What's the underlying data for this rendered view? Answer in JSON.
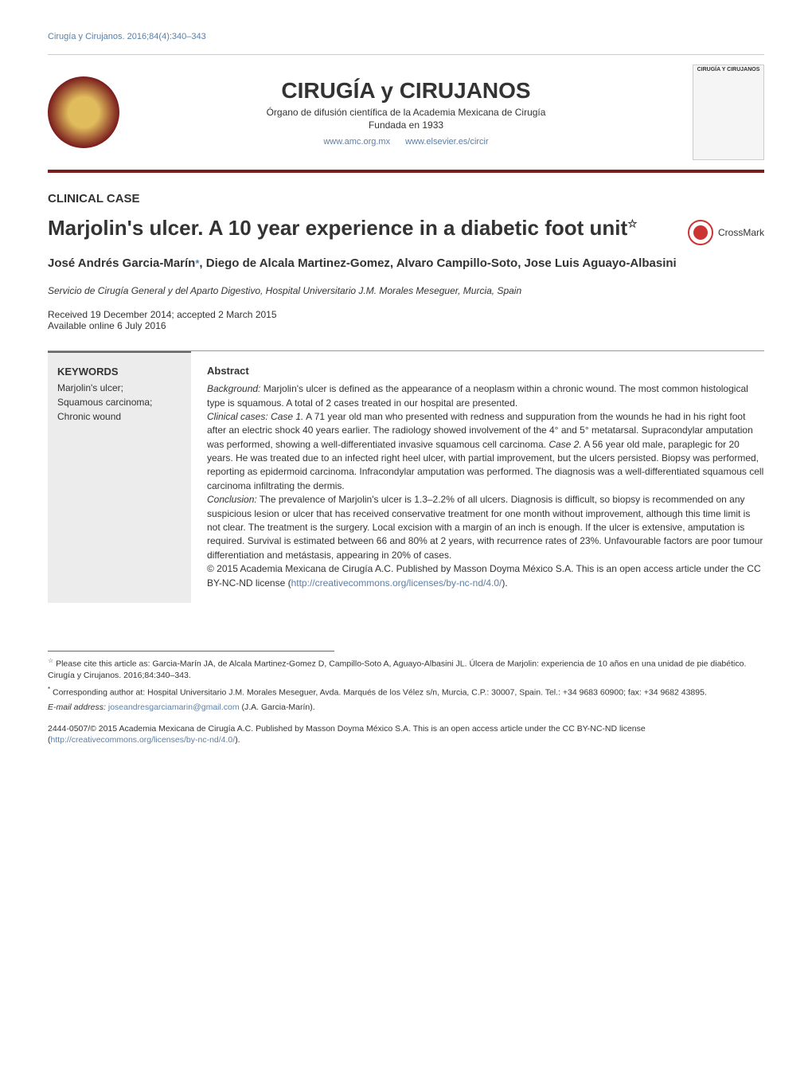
{
  "header": {
    "citation_link": "Cirugía y Cirujanos. 2016;84(4):340–343",
    "journal_title": "CIRUGÍA y CIRUJANOS",
    "journal_subtitle": "Órgano de difusión científica de la Academia Mexicana de Cirugía",
    "journal_founded": "Fundada en 1933",
    "link1": "www.amc.org.mx",
    "link2": "www.elsevier.es/circir",
    "cover_label": "CIRUGÍA Y CIRUJANOS"
  },
  "article": {
    "section_label": "CLINICAL CASE",
    "title": "Marjolin's ulcer. A 10 year experience in a diabetic foot unit",
    "title_star": "☆",
    "crossmark": "CrossMark",
    "authors": "José Andrés Garcia-Marín*, Diego de Alcala Martinez-Gomez, Alvaro Campillo-Soto, Jose Luis Aguayo-Albasini",
    "affiliation": "Servicio de Cirugía General y del Aparto Digestivo, Hospital Universitario J.M. Morales Meseguer, Murcia, Spain",
    "received": "Received 19 December 2014; accepted 2 March 2015",
    "available": "Available online 6 July 2016"
  },
  "keywords": {
    "title": "KEYWORDS",
    "items": "Marjolin's ulcer;\nSquamous carcinoma;\nChronic wound"
  },
  "abstract": {
    "heading": "Abstract",
    "background_label": "Background:",
    "background": " Marjolin's ulcer is defined as the appearance of a neoplasm within a chronic wound. The most common histological type is squamous. A total of 2 cases treated in our hospital are presented.",
    "cases_label": "Clinical cases: Case 1.",
    "cases": " A 71 year old man who presented with redness and suppuration from the wounds he had in his right foot after an electric shock 40 years earlier. The radiology showed involvement of the 4° and 5° metatarsal. Supracondylar amputation was performed, showing a well-differentiated invasive squamous cell carcinoma. ",
    "case2_label": "Case 2.",
    "case2": " A 56 year old male, paraplegic for 20 years. He was treated due to an infected right heel ulcer, with partial improvement, but the ulcers persisted. Biopsy was performed, reporting as epidermoid carcinoma. Infracondylar amputation was performed. The diagnosis was a well-differentiated squamous cell carcinoma infiltrating the dermis.",
    "conclusion_label": "Conclusion:",
    "conclusion": " The prevalence of Marjolin's ulcer is 1.3–2.2% of all ulcers. Diagnosis is difficult, so biopsy is recommended on any suspicious lesion or ulcer that has received conservative treatment for one month without improvement, although this time limit is not clear. The treatment is the surgery. Local excision with a margin of an inch is enough. If the ulcer is extensive, amputation is required. Survival is estimated between 66 and 80% at 2 years, with recurrence rates of 23%. Unfavourable factors are poor tumour differentiation and metástasis, appearing in 20% of cases.",
    "copyright": "© 2015 Academia Mexicana de Cirugía A.C. Published by Masson Doyma México S.A. This is an open access article under the CC BY-NC-ND license (",
    "license_link": "http://creativecommons.org/licenses/by-nc-nd/4.0/",
    "copyright_end": ")."
  },
  "footnotes": {
    "cite_marker": "☆",
    "cite": " Please cite this article as: Garcia-Marín JA, de Alcala Martinez-Gomez D, Campillo-Soto A, Aguayo-Albasini JL. Úlcera de Marjolin: experiencia de 10 años en una unidad de pie diabético. Cirugía y Cirujanos. 2016;84:340–343.",
    "corr_marker": "*",
    "corr": " Corresponding author at: Hospital Universitario J.M. Morales Meseguer, Avda. Marqués de los Vélez s/n, Murcia, C.P.: 30007, Spain. Tel.: +34 9683 60900; fax: +34 9682 43895.",
    "email_label": "E-mail address: ",
    "email": "joseandresgarciamarin@gmail.com",
    "email_suffix": " (J.A. Garcia-Marín).",
    "bottom": "2444-0507/© 2015 Academia Mexicana de Cirugía A.C. Published by Masson Doyma México S.A. This is an open access article under the CC BY-NC-ND license (",
    "bottom_link": "http://creativecommons.org/licenses/by-nc-nd/4.0/",
    "bottom_end": ")."
  }
}
